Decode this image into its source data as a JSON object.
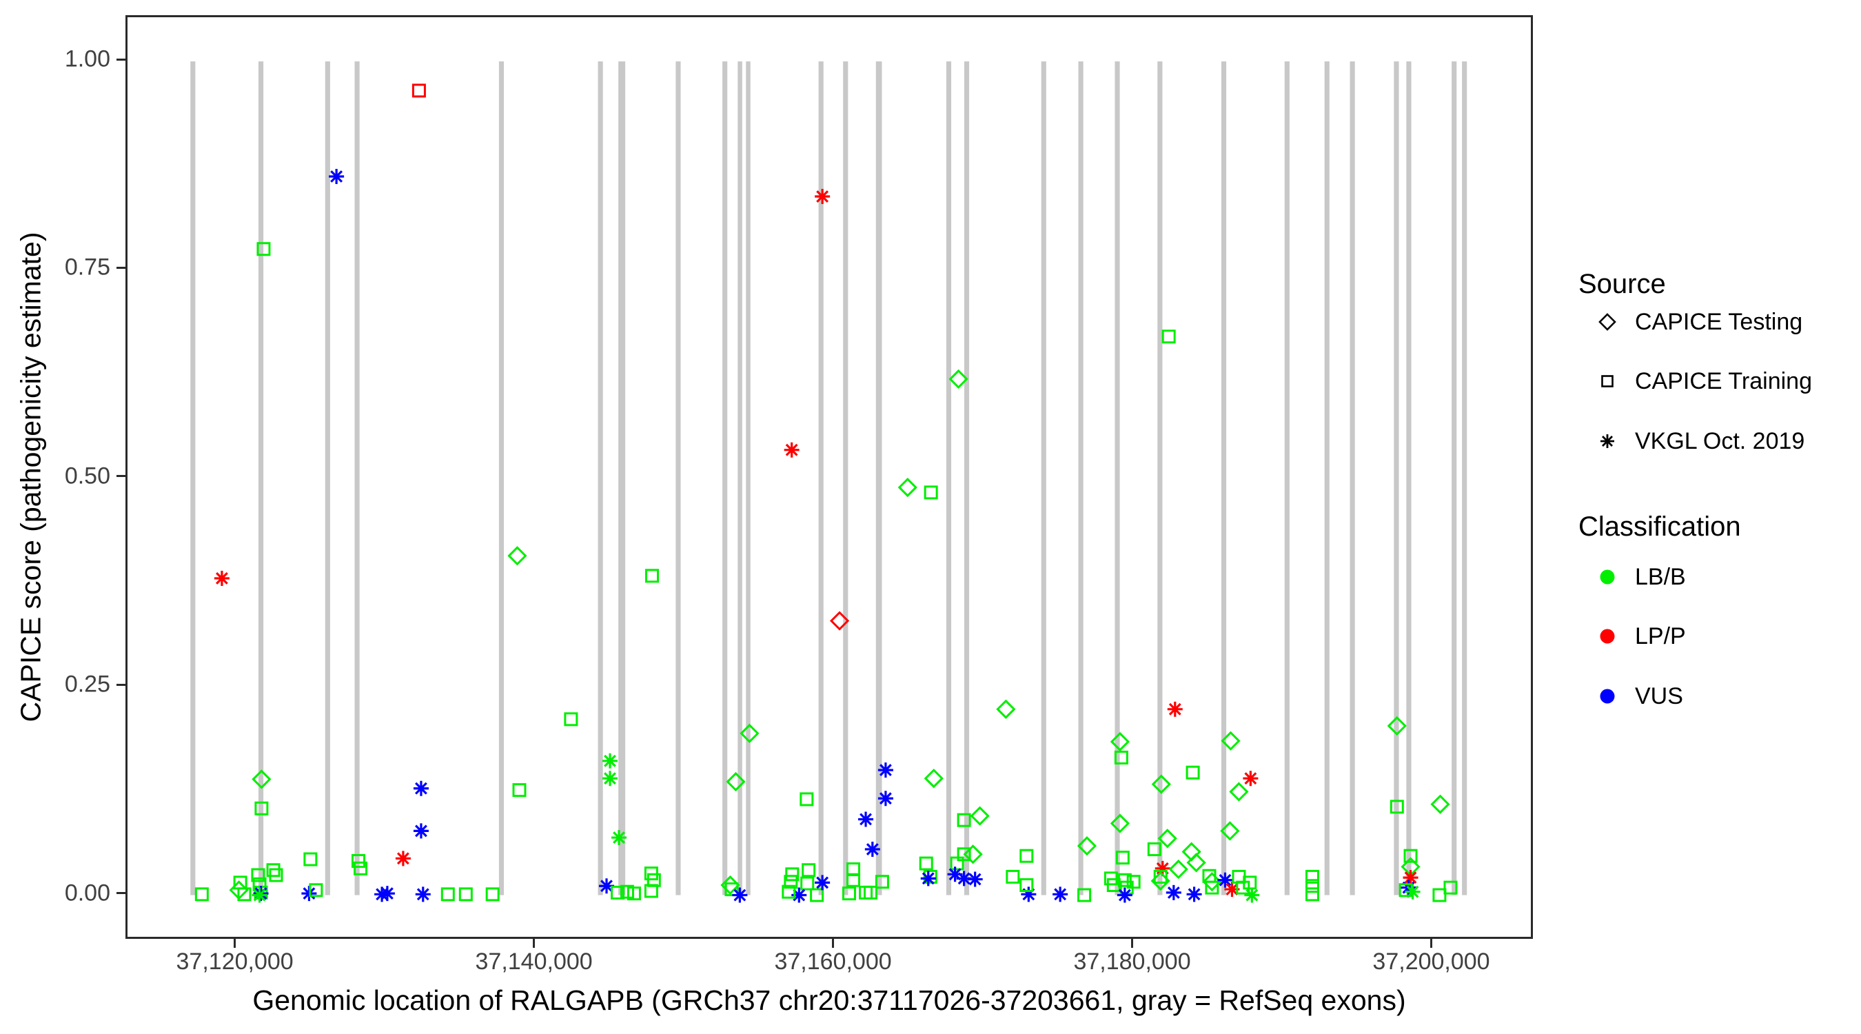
{
  "colors": {
    "LB": "#00ee00",
    "LP": "#ff0000",
    "VUS": "#0000ff",
    "exon": "#c8c8c8",
    "key": "#000000",
    "tick_text": "#404040"
  },
  "legend": {
    "source": {
      "title": "Source",
      "items": [
        {
          "label": "CAPICE Testing",
          "marker": "D"
        },
        {
          "label": "CAPICE Training",
          "marker": "S"
        },
        {
          "label": "VKGL Oct. 2019",
          "marker": "A"
        }
      ]
    },
    "classification": {
      "title": "Classification",
      "items": [
        {
          "label": "LB/B",
          "class": "LB"
        },
        {
          "label": "LP/P",
          "class": "LP"
        },
        {
          "label": "VUS",
          "class": "VUS"
        }
      ]
    }
  },
  "chart_data": {
    "type": "scatter",
    "title": "",
    "xlabel": "Genomic location of RALGAPB (GRCh37 chr20:37117026-37203661, gray = RefSeq exons)",
    "ylabel": "CAPICE score (pathogenicity estimate)",
    "x_domain": [
      37112690,
      37206520
    ],
    "y_domain": [
      -0.05,
      1.053
    ],
    "grid": false,
    "legend_position": "right",
    "x_ticks": [
      {
        "pos": 37120000,
        "label": "37,120,000"
      },
      {
        "pos": 37140000,
        "label": "37,140,000"
      },
      {
        "pos": 37160000,
        "label": "37,160,000"
      },
      {
        "pos": 37180000,
        "label": "37,180,000"
      },
      {
        "pos": 37200000,
        "label": "37,200,000"
      }
    ],
    "y_ticks": [
      {
        "v": 0.0,
        "label": "0.00"
      },
      {
        "v": 0.25,
        "label": "0.25"
      },
      {
        "v": 0.5,
        "label": "0.50"
      },
      {
        "v": 0.75,
        "label": "0.75"
      },
      {
        "v": 1.0,
        "label": "1.00"
      }
    ],
    "exons_format": [
      "center_pos_bp",
      "width_bp"
    ],
    "exons": [
      [
        37117060,
        330
      ],
      [
        37121610,
        330
      ],
      [
        37126070,
        330
      ],
      [
        37128040,
        330
      ],
      [
        37137690,
        330
      ],
      [
        37144310,
        330
      ],
      [
        37145740,
        460
      ],
      [
        37149510,
        330
      ],
      [
        37152630,
        330
      ],
      [
        37153640,
        300
      ],
      [
        37154190,
        300
      ],
      [
        37159060,
        330
      ],
      [
        37160700,
        330
      ],
      [
        37162930,
        400
      ],
      [
        37167600,
        330
      ],
      [
        37168800,
        330
      ],
      [
        37173950,
        330
      ],
      [
        37176430,
        330
      ],
      [
        37178870,
        330
      ],
      [
        37181720,
        330
      ],
      [
        37185990,
        330
      ],
      [
        37190220,
        330
      ],
      [
        37192890,
        330
      ],
      [
        37194590,
        330
      ],
      [
        37197530,
        330
      ],
      [
        37198360,
        330
      ],
      [
        37201390,
        330
      ],
      [
        37202080,
        330
      ]
    ],
    "points_format": [
      "pos_bp",
      "score",
      "marker D=CAPICE Testing diamond / S=CAPICE Training square / A=VKGL asterisk",
      "class"
    ],
    "points": [
      [
        37119000,
        0.38,
        "A",
        "LP"
      ],
      [
        37121790,
        0.775,
        "S",
        "LB"
      ],
      [
        37126660,
        0.862,
        "A",
        "VUS"
      ],
      [
        37132180,
        0.965,
        "S",
        "LP"
      ],
      [
        37138750,
        0.407,
        "D",
        "LB"
      ],
      [
        37147760,
        0.383,
        "S",
        "LB"
      ],
      [
        37142340,
        0.211,
        "S",
        "LB"
      ],
      [
        37138890,
        0.126,
        "S",
        "LB"
      ],
      [
        37121650,
        0.139,
        "D",
        "LB"
      ],
      [
        37121650,
        0.104,
        "S",
        "LB"
      ],
      [
        37132320,
        0.128,
        "A",
        "VUS"
      ],
      [
        37132320,
        0.077,
        "A",
        "VUS"
      ],
      [
        37131120,
        0.044,
        "A",
        "LP"
      ],
      [
        37159150,
        0.838,
        "A",
        "LP"
      ],
      [
        37157100,
        0.534,
        "A",
        "LP"
      ],
      [
        37168250,
        0.619,
        "D",
        "LB"
      ],
      [
        37164850,
        0.489,
        "D",
        "LB"
      ],
      [
        37166410,
        0.483,
        "S",
        "LB"
      ],
      [
        37160300,
        0.329,
        "D",
        "LP"
      ],
      [
        37154280,
        0.194,
        "D",
        "LB"
      ],
      [
        37171420,
        0.223,
        "D",
        "LB"
      ],
      [
        37144950,
        0.161,
        "A",
        "LB"
      ],
      [
        37144950,
        0.14,
        "A",
        "LB"
      ],
      [
        37145550,
        0.069,
        "A",
        "LB"
      ],
      [
        37153360,
        0.136,
        "D",
        "LB"
      ],
      [
        37158100,
        0.115,
        "S",
        "LB"
      ],
      [
        37163380,
        0.15,
        "A",
        "VUS"
      ],
      [
        37163380,
        0.116,
        "A",
        "VUS"
      ],
      [
        37162050,
        0.091,
        "A",
        "VUS"
      ],
      [
        37162500,
        0.055,
        "A",
        "VUS"
      ],
      [
        37166600,
        0.14,
        "D",
        "LB"
      ],
      [
        37182730,
        0.223,
        "A",
        "LP"
      ],
      [
        37179050,
        0.184,
        "D",
        "LB"
      ],
      [
        37179140,
        0.165,
        "S",
        "LB"
      ],
      [
        37187780,
        0.14,
        "A",
        "LP"
      ],
      [
        37183920,
        0.147,
        "S",
        "LB"
      ],
      [
        37181810,
        0.133,
        "D",
        "LB"
      ],
      [
        37186450,
        0.185,
        "D",
        "LB"
      ],
      [
        37197570,
        0.203,
        "D",
        "LB"
      ],
      [
        37200460,
        0.109,
        "D",
        "LB"
      ],
      [
        37197570,
        0.106,
        "S",
        "LB"
      ],
      [
        37186400,
        0.077,
        "D",
        "LB"
      ],
      [
        37187000,
        0.124,
        "D",
        "LB"
      ],
      [
        37182310,
        0.67,
        "S",
        "LB"
      ],
      [
        37176840,
        0.059,
        "D",
        "LB"
      ],
      [
        37179050,
        0.086,
        "D",
        "LB"
      ],
      [
        37168620,
        0.09,
        "S",
        "LB"
      ],
      [
        37169680,
        0.095,
        "D",
        "LB"
      ],
      [
        37117660,
        0.001,
        "S",
        "LB"
      ],
      [
        37120230,
        0.015,
        "S",
        "LB"
      ],
      [
        37120140,
        0.006,
        "D",
        "LB"
      ],
      [
        37120500,
        0.001,
        "S",
        "LB"
      ],
      [
        37121420,
        0.024,
        "S",
        "LB"
      ],
      [
        37121520,
        0.013,
        "S",
        "LB"
      ],
      [
        37121610,
        0.003,
        "S",
        "LB"
      ],
      [
        37121610,
        0.002,
        "A",
        "VUS"
      ],
      [
        37121520,
        0.0,
        "A",
        "LB"
      ],
      [
        37122440,
        0.03,
        "S",
        "LB"
      ],
      [
        37122620,
        0.024,
        "S",
        "LB"
      ],
      [
        37124920,
        0.043,
        "S",
        "LB"
      ],
      [
        37124830,
        0.002,
        "A",
        "VUS"
      ],
      [
        37125290,
        0.006,
        "S",
        "LB"
      ],
      [
        37128130,
        0.041,
        "S",
        "LB"
      ],
      [
        37128270,
        0.032,
        "S",
        "LB"
      ],
      [
        37129700,
        0.001,
        "A",
        "VUS"
      ],
      [
        37130060,
        0.002,
        "A",
        "VUS"
      ],
      [
        37134110,
        0.001,
        "S",
        "LB"
      ],
      [
        37135310,
        0.001,
        "S",
        "LB"
      ],
      [
        37137100,
        0.001,
        "S",
        "LB"
      ],
      [
        37132450,
        0.001,
        "A",
        "VUS"
      ],
      [
        37144720,
        0.011,
        "A",
        "VUS"
      ],
      [
        37145460,
        0.003,
        "S",
        "LB"
      ],
      [
        37146100,
        0.004,
        "S",
        "LB"
      ],
      [
        37146560,
        0.002,
        "S",
        "LB"
      ],
      [
        37147710,
        0.026,
        "S",
        "LB"
      ],
      [
        37147890,
        0.018,
        "S",
        "LB"
      ],
      [
        37147710,
        0.005,
        "S",
        "LB"
      ],
      [
        37152990,
        0.012,
        "D",
        "LB"
      ],
      [
        37153080,
        0.007,
        "S",
        "LB"
      ],
      [
        37153630,
        0.0,
        "A",
        "VUS"
      ],
      [
        37157130,
        0.025,
        "S",
        "LB"
      ],
      [
        37157040,
        0.016,
        "S",
        "LB"
      ],
      [
        37158230,
        0.03,
        "S",
        "LB"
      ],
      [
        37158140,
        0.014,
        "S",
        "LB"
      ],
      [
        37158780,
        0.0,
        "S",
        "LB"
      ],
      [
        37157590,
        0.0,
        "A",
        "VUS"
      ],
      [
        37159150,
        0.015,
        "A",
        "VUS"
      ],
      [
        37156900,
        0.004,
        "S",
        "LB"
      ],
      [
        37161220,
        0.031,
        "S",
        "LB"
      ],
      [
        37161220,
        0.018,
        "S",
        "LB"
      ],
      [
        37160940,
        0.002,
        "S",
        "LB"
      ],
      [
        37162050,
        0.003,
        "S",
        "LB"
      ],
      [
        37162370,
        0.003,
        "S",
        "LB"
      ],
      [
        37163150,
        0.016,
        "S",
        "LB"
      ],
      [
        37166090,
        0.038,
        "S",
        "LB"
      ],
      [
        37166370,
        0.022,
        "S",
        "LB"
      ],
      [
        37166230,
        0.02,
        "A",
        "VUS"
      ],
      [
        37168620,
        0.049,
        "S",
        "LB"
      ],
      [
        37169220,
        0.049,
        "D",
        "LB"
      ],
      [
        37168160,
        0.038,
        "S",
        "LB"
      ],
      [
        37168020,
        0.025,
        "A",
        "VUS"
      ],
      [
        37168620,
        0.02,
        "A",
        "VUS"
      ],
      [
        37169360,
        0.019,
        "A",
        "VUS"
      ],
      [
        37171880,
        0.022,
        "S",
        "LB"
      ],
      [
        37172940,
        0.001,
        "A",
        "VUS"
      ],
      [
        37175050,
        0.001,
        "A",
        "VUS"
      ],
      [
        37172800,
        0.047,
        "S",
        "LB"
      ],
      [
        37172800,
        0.012,
        "S",
        "LB"
      ],
      [
        37176660,
        0.0,
        "S",
        "LB"
      ],
      [
        37178450,
        0.02,
        "S",
        "LB"
      ],
      [
        37178630,
        0.012,
        "S",
        "LB"
      ],
      [
        37179370,
        0.018,
        "S",
        "LB"
      ],
      [
        37179500,
        0.009,
        "S",
        "LB"
      ],
      [
        37179960,
        0.016,
        "S",
        "LB"
      ],
      [
        37179230,
        0.045,
        "S",
        "LB"
      ],
      [
        37179370,
        0.0,
        "A",
        "VUS"
      ],
      [
        37181900,
        0.032,
        "A",
        "LP"
      ],
      [
        37182220,
        0.068,
        "D",
        "LB"
      ],
      [
        37182960,
        0.031,
        "D",
        "LB"
      ],
      [
        37181760,
        0.022,
        "S",
        "LB"
      ],
      [
        37181760,
        0.017,
        "D",
        "LB"
      ],
      [
        37182640,
        0.003,
        "A",
        "VUS"
      ],
      [
        37183830,
        0.052,
        "D",
        "LB"
      ],
      [
        37184150,
        0.039,
        "D",
        "LB"
      ],
      [
        37184010,
        0.001,
        "A",
        "VUS"
      ],
      [
        37185020,
        0.023,
        "S",
        "LB"
      ],
      [
        37185200,
        0.009,
        "S",
        "LB"
      ],
      [
        37185200,
        0.016,
        "D",
        "LB"
      ],
      [
        37186080,
        0.018,
        "A",
        "VUS"
      ],
      [
        37186540,
        0.007,
        "A",
        "LP"
      ],
      [
        37187000,
        0.022,
        "S",
        "LB"
      ],
      [
        37187270,
        0.009,
        "S",
        "LB"
      ],
      [
        37187730,
        0.015,
        "S",
        "LB"
      ],
      [
        37187870,
        0.0,
        "A",
        "LB"
      ],
      [
        37191910,
        0.022,
        "S",
        "LB"
      ],
      [
        37191910,
        0.011,
        "S",
        "LB"
      ],
      [
        37191910,
        0.001,
        "S",
        "LB"
      ],
      [
        37198480,
        0.047,
        "S",
        "LB"
      ],
      [
        37198480,
        0.034,
        "D",
        "LB"
      ],
      [
        37198480,
        0.021,
        "A",
        "LP"
      ],
      [
        37198340,
        0.009,
        "A",
        "VUS"
      ],
      [
        37198160,
        0.006,
        "S",
        "LB"
      ],
      [
        37198620,
        0.004,
        "A",
        "LB"
      ],
      [
        37201150,
        0.009,
        "S",
        "LB"
      ],
      [
        37200410,
        0.0,
        "S",
        "LB"
      ],
      [
        37181350,
        0.055,
        "S",
        "LB"
      ]
    ]
  }
}
